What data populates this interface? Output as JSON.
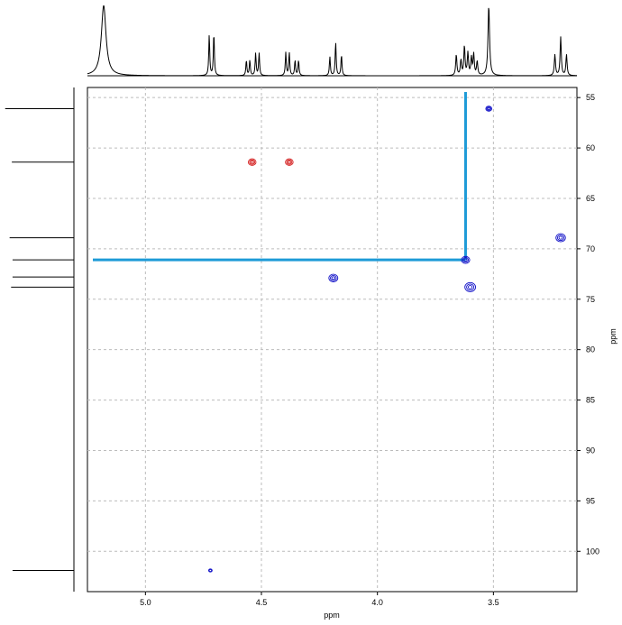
{
  "chart_data": {
    "type": "scatter",
    "subtype": "2D NMR HSQC contour plot with 1D projections",
    "xlabel": "ppm",
    "ylabel": "ppm",
    "xlim": [
      5.25,
      3.14
    ],
    "ylim": [
      54.0,
      104.0
    ],
    "x_reversed": true,
    "y_reversed": true,
    "grid": true,
    "grid_style": "dashed",
    "x_ticks": [
      5.0,
      4.5,
      4.0,
      3.5
    ],
    "y_ticks": [
      55,
      60,
      65,
      70,
      75,
      80,
      85,
      90,
      95,
      100
    ],
    "x_tick_labels": [
      "5.0",
      "4.5",
      "4.0",
      "3.5"
    ],
    "y_tick_labels": [
      "55",
      "60",
      "65",
      "70",
      "75",
      "80",
      "85",
      "90",
      "95",
      "100"
    ],
    "cross_peaks": [
      {
        "x": 3.52,
        "y": 56.1,
        "phase": "positive",
        "size": 1.0
      },
      {
        "x": 4.54,
        "y": 61.4,
        "phase": "negative",
        "size": 1.3
      },
      {
        "x": 4.38,
        "y": 61.4,
        "phase": "negative",
        "size": 1.3
      },
      {
        "x": 3.21,
        "y": 68.9,
        "phase": "positive",
        "size": 1.6
      },
      {
        "x": 3.62,
        "y": 71.1,
        "phase": "positive",
        "size": 1.4
      },
      {
        "x": 4.19,
        "y": 72.9,
        "phase": "positive",
        "size": 1.5
      },
      {
        "x": 3.6,
        "y": 73.8,
        "phase": "positive",
        "size": 1.8
      },
      {
        "x": 4.72,
        "y": 101.9,
        "phase": "positive",
        "size": 0.6
      }
    ],
    "highlight": {
      "x": 3.62,
      "y": 71.1,
      "color": "#1e9bd7"
    },
    "top_projection_peaks": [
      {
        "x": 5.18,
        "h": 1.0,
        "w": 0.012
      },
      {
        "x": 4.725,
        "h": 0.58,
        "w": 0.0025
      },
      {
        "x": 4.705,
        "h": 0.61,
        "w": 0.0025
      },
      {
        "x": 4.565,
        "h": 0.22,
        "w": 0.0025
      },
      {
        "x": 4.55,
        "h": 0.22,
        "w": 0.0025
      },
      {
        "x": 4.525,
        "h": 0.32,
        "w": 0.0025
      },
      {
        "x": 4.51,
        "h": 0.32,
        "w": 0.0025
      },
      {
        "x": 4.395,
        "h": 0.33,
        "w": 0.0025
      },
      {
        "x": 4.38,
        "h": 0.33,
        "w": 0.0025
      },
      {
        "x": 4.355,
        "h": 0.22,
        "w": 0.0025
      },
      {
        "x": 4.34,
        "h": 0.22,
        "w": 0.0025
      },
      {
        "x": 4.205,
        "h": 0.27,
        "w": 0.0025
      },
      {
        "x": 4.18,
        "h": 0.48,
        "w": 0.0025
      },
      {
        "x": 4.155,
        "h": 0.3,
        "w": 0.0025
      },
      {
        "x": 3.66,
        "h": 0.3,
        "w": 0.003
      },
      {
        "x": 3.64,
        "h": 0.22,
        "w": 0.003
      },
      {
        "x": 3.625,
        "h": 0.42,
        "w": 0.003
      },
      {
        "x": 3.61,
        "h": 0.32,
        "w": 0.003
      },
      {
        "x": 3.595,
        "h": 0.25,
        "w": 0.003
      },
      {
        "x": 3.585,
        "h": 0.3,
        "w": 0.003
      },
      {
        "x": 3.57,
        "h": 0.2,
        "w": 0.003
      },
      {
        "x": 3.52,
        "h": 1.0,
        "w": 0.004
      },
      {
        "x": 3.235,
        "h": 0.3,
        "w": 0.003
      },
      {
        "x": 3.21,
        "h": 0.55,
        "w": 0.003
      },
      {
        "x": 3.185,
        "h": 0.3,
        "w": 0.003
      }
    ],
    "side_projection_peaks": [
      {
        "y": 56.1,
        "h": 0.93
      },
      {
        "y": 61.4,
        "h": 0.84
      },
      {
        "y": 68.9,
        "h": 0.87
      },
      {
        "y": 71.1,
        "h": 0.83
      },
      {
        "y": 72.8,
        "h": 0.83
      },
      {
        "y": 73.8,
        "h": 0.85
      },
      {
        "y": 101.9,
        "h": 0.83
      }
    ]
  },
  "colors": {
    "positive": "#1212c8",
    "negative": "#d42020",
    "grid": "#bcbcbc",
    "highlight": "#1e9bd7",
    "trace": "#000000"
  }
}
